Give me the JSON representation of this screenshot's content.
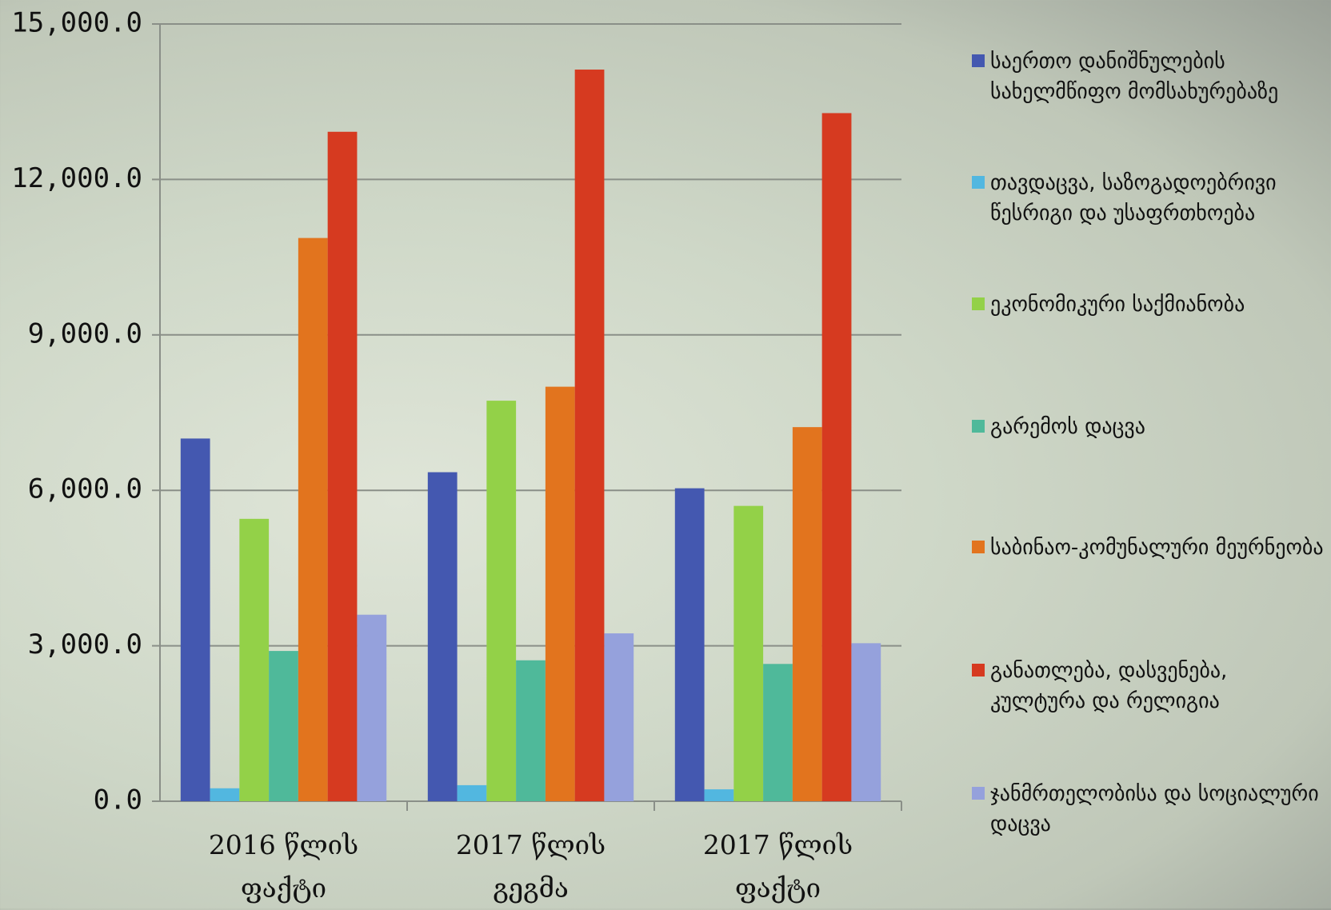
{
  "chart_data": {
    "type": "bar",
    "categories": [
      "2016 წლის ფაქტი",
      "2017 წლის გეგმა",
      "2017 წლის ფაქტი"
    ],
    "series": [
      {
        "name": "საერთო დანიშნულების სახელმწიფო მომსახურებაზე",
        "color": "#4458b0",
        "values": [
          7000,
          6350,
          6040
        ]
      },
      {
        "name": "თავდაცვა, საზოგადოებრივი წესრიგი და უსაფრთხოება",
        "color": "#52b7e0",
        "values": [
          250,
          310,
          230
        ]
      },
      {
        "name": "ეკონომიკური საქმიანობა",
        "color": "#93d148",
        "values": [
          5450,
          7730,
          5700
        ]
      },
      {
        "name": "გარემოს დაცვა",
        "color": "#4fb99a",
        "values": [
          2900,
          2720,
          2650
        ]
      },
      {
        "name": "საბინაო-კომუნალური მეურნეობა",
        "color": "#e2741e",
        "values": [
          10870,
          8000,
          7220
        ]
      },
      {
        "name": "განათლება, დასვენება, კულტურა და რელიგია",
        "color": "#d63a20",
        "values": [
          12920,
          14120,
          13280
        ]
      },
      {
        "name": "ჯანმრთელობისა და სოციალური დაცვა",
        "color": "#95a1dc",
        "values": [
          3600,
          3240,
          3050
        ]
      }
    ],
    "ylim": [
      0,
      15000
    ],
    "yticks": [
      {
        "value": 0,
        "label": "0.0"
      },
      {
        "value": 3000,
        "label": "3,000.0"
      },
      {
        "value": 6000,
        "label": "6,000.0"
      },
      {
        "value": 9000,
        "label": "9,000.0"
      },
      {
        "value": 12000,
        "label": "12,000.0"
      },
      {
        "value": 15000,
        "label": "15,000.0"
      }
    ],
    "grid": true,
    "legend": "right"
  }
}
